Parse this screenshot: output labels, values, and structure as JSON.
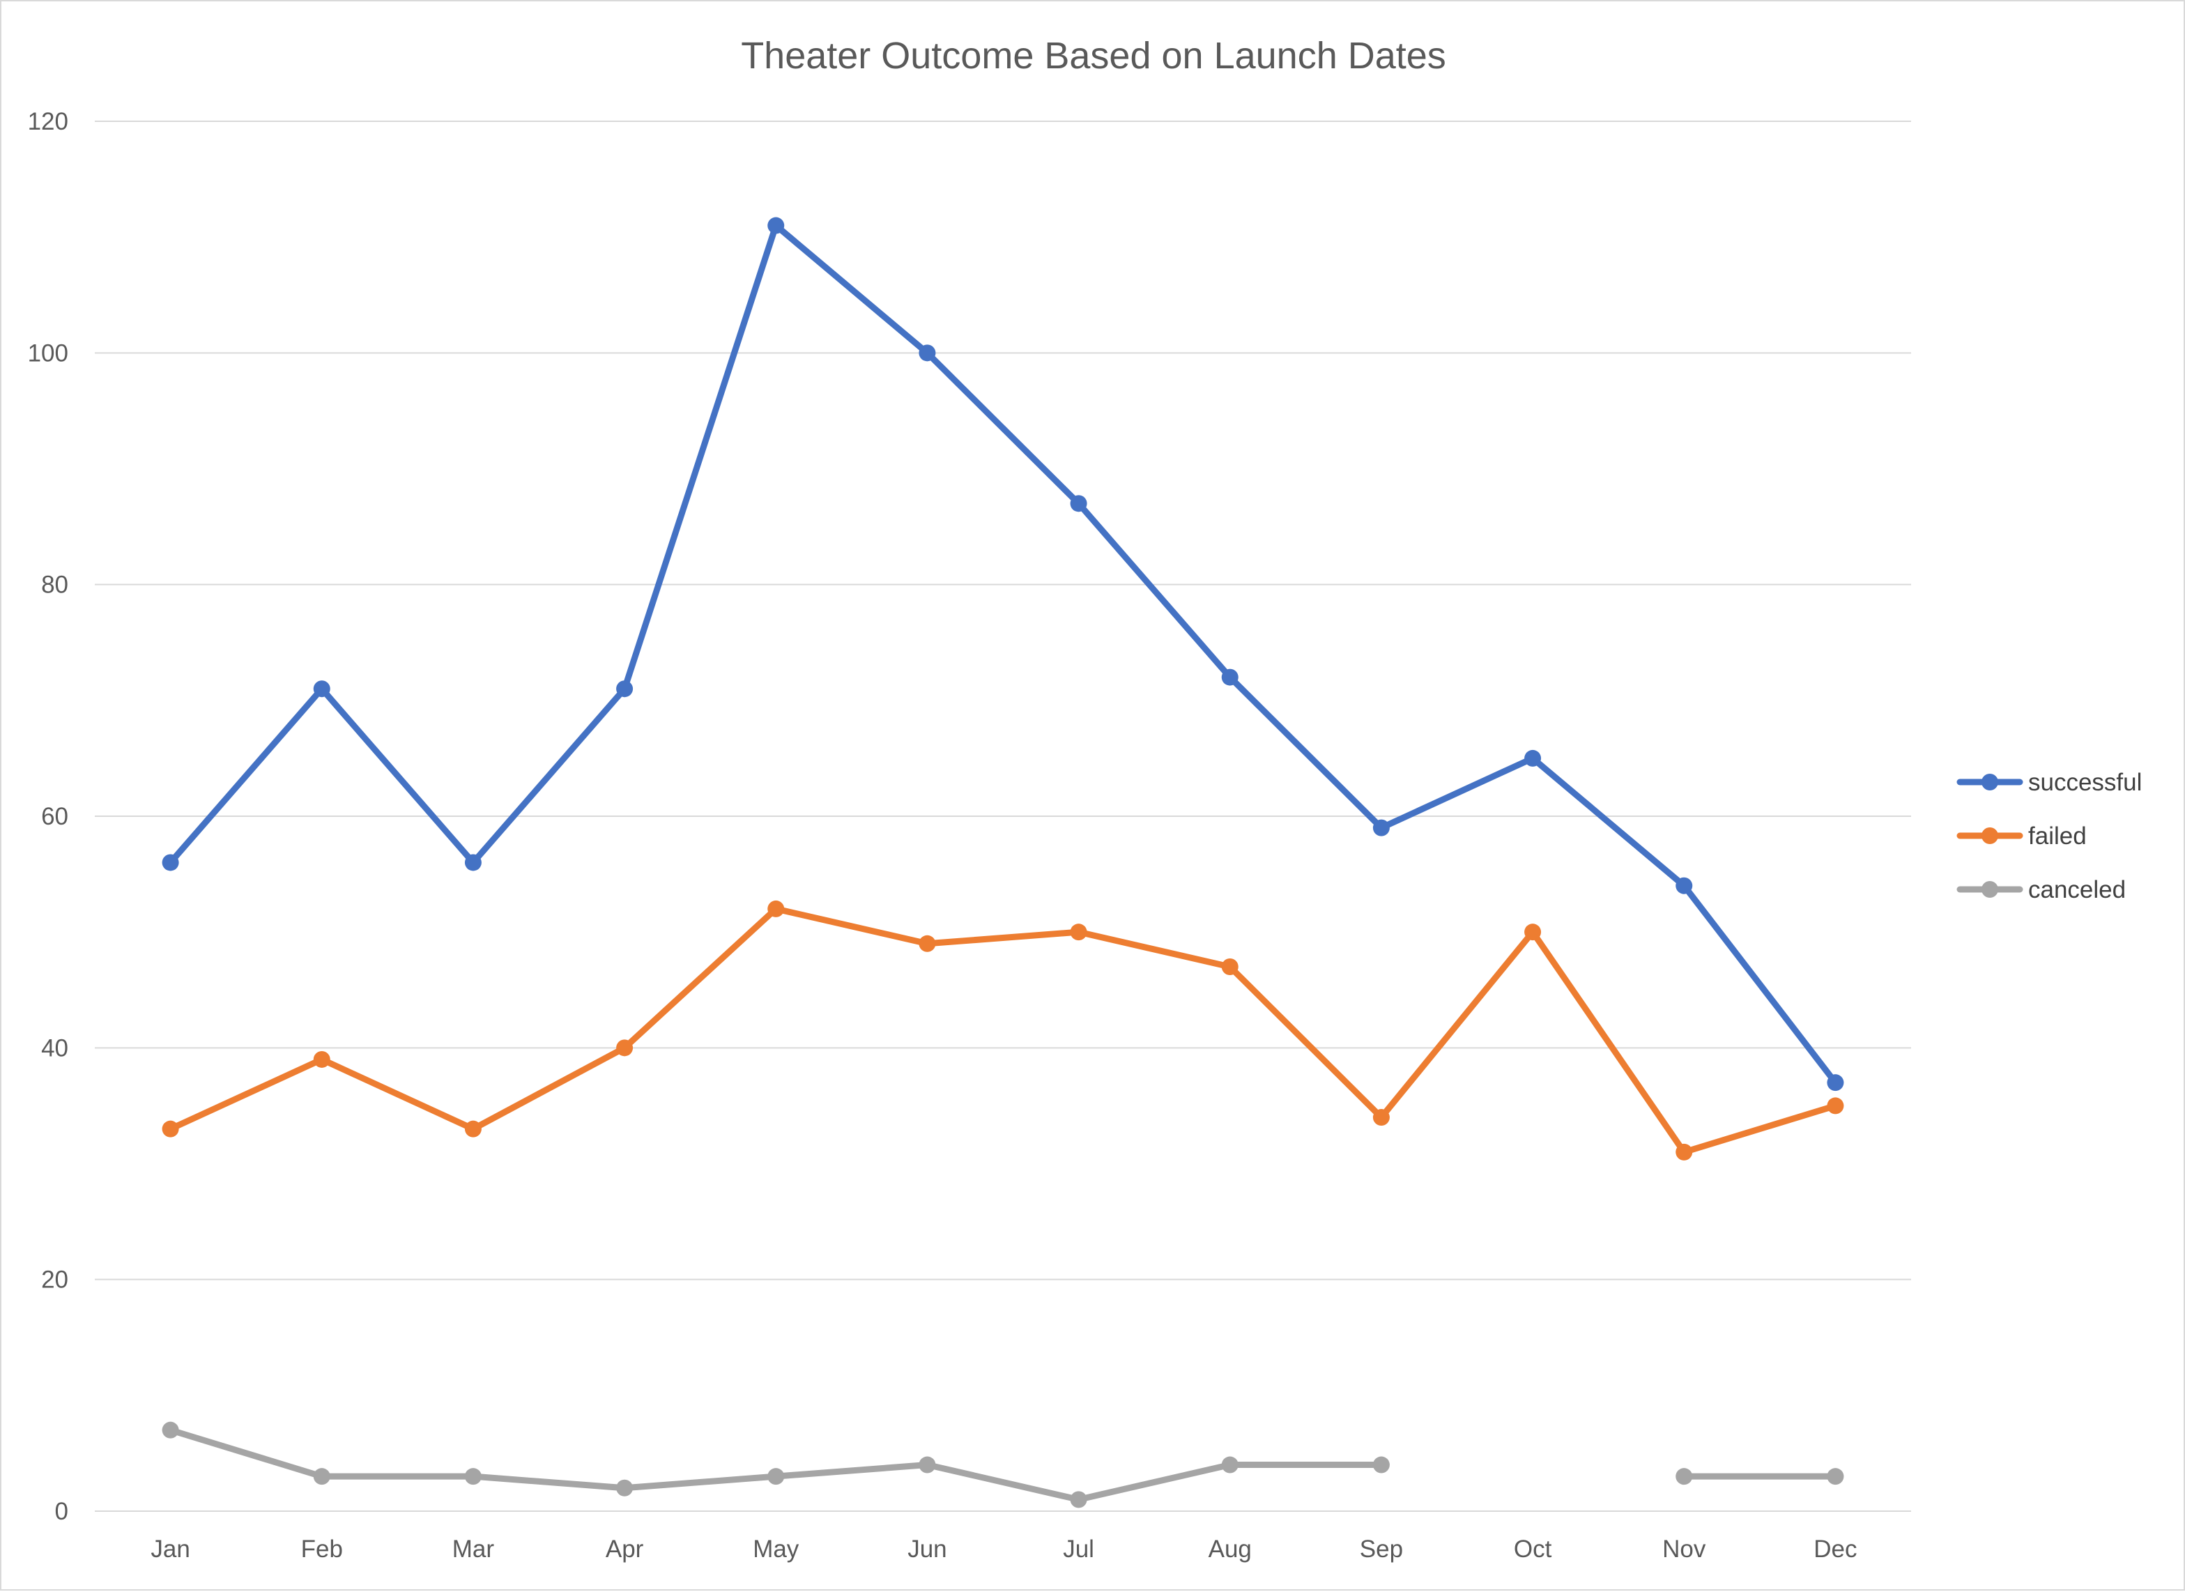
{
  "chart_data": {
    "type": "line",
    "title": "Theater Outcome Based on Launch Dates",
    "xlabel": "",
    "ylabel": "",
    "categories": [
      "Jan",
      "Feb",
      "Mar",
      "Apr",
      "May",
      "Jun",
      "Jul",
      "Aug",
      "Sep",
      "Oct",
      "Nov",
      "Dec"
    ],
    "ylim": [
      0,
      120
    ],
    "yticks": [
      0,
      20,
      40,
      60,
      80,
      100,
      120
    ],
    "grid": true,
    "legend_position": "right",
    "series": [
      {
        "name": "successful",
        "color": "#4472c4",
        "values": [
          56,
          71,
          56,
          71,
          111,
          100,
          87,
          72,
          59,
          65,
          54,
          37
        ]
      },
      {
        "name": "failed",
        "color": "#ed7d31",
        "values": [
          33,
          39,
          33,
          40,
          52,
          49,
          50,
          47,
          34,
          50,
          31,
          35
        ]
      },
      {
        "name": "canceled",
        "color": "#a5a5a5",
        "values": [
          7,
          3,
          3,
          2,
          3,
          4,
          1,
          4,
          4,
          null,
          3,
          3
        ]
      }
    ]
  }
}
